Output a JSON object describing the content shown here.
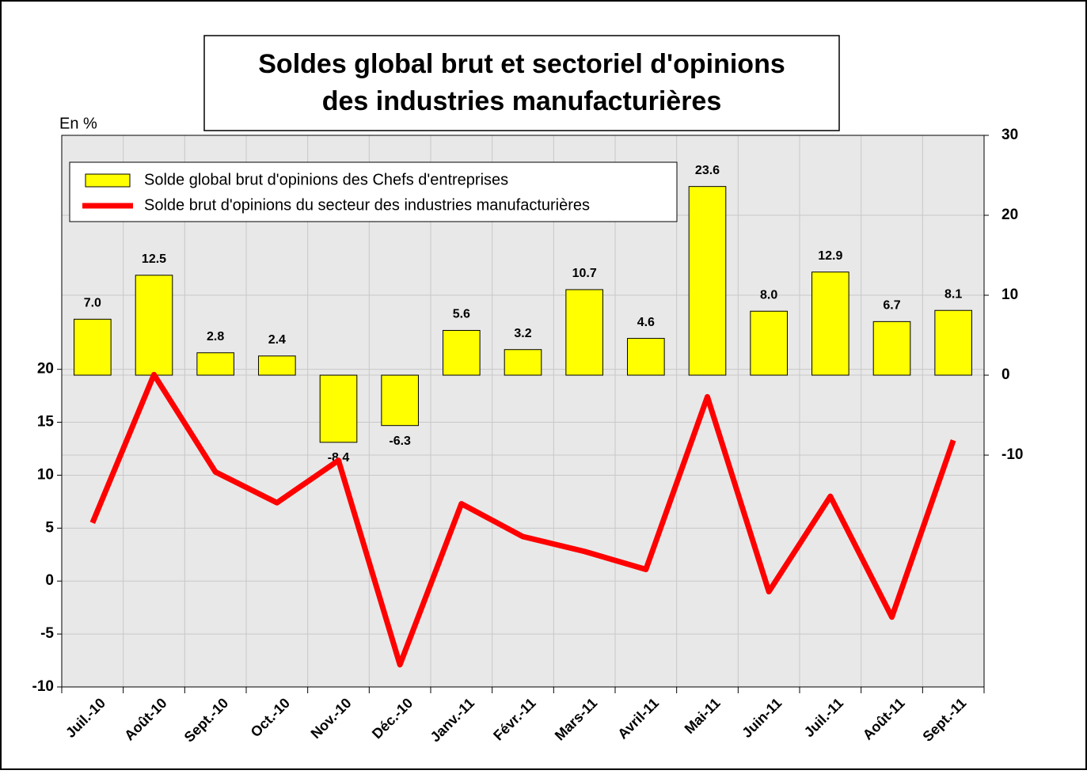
{
  "chart_data": {
    "type": "bar_line",
    "title": [
      "Soldes global brut et sectoriel d'opinions",
      "des industries manufacturières"
    ],
    "y_label": "En %",
    "categories": [
      "Juil.-10",
      "Août-10",
      "Sept.-10",
      "Oct.-10",
      "Nov.-10",
      "Déc.-10",
      "Janv.-11",
      "Févr.-11",
      "Mars-11",
      "Avril-11",
      "Mai-11",
      "Juin-11",
      "Juil.-11",
      "Août-11",
      "Sept.-11"
    ],
    "series": [
      {
        "name": "Solde global brut d'opinions des Chefs d'entreprises",
        "kind": "bar",
        "axis": "y2",
        "color": "#ffff00",
        "values": [
          7.0,
          12.5,
          2.8,
          2.4,
          -8.4,
          -6.3,
          5.6,
          3.2,
          10.7,
          4.6,
          23.6,
          8.0,
          12.9,
          6.7,
          8.1
        ],
        "value_labels": [
          "7.0",
          "12.5",
          "2.8",
          "2.4",
          "-8.4",
          "-6.3",
          "5.6",
          "3.2",
          "10.7",
          "4.6",
          "23.6",
          "8.0",
          "12.9",
          "6.7",
          "8.1"
        ]
      },
      {
        "name": "Solde brut d'opinions du secteur des industries manufacturières",
        "kind": "line",
        "axis": "y",
        "color": "#ff0000",
        "values": [
          5.5,
          19.5,
          10.3,
          7.4,
          11.4,
          -7.9,
          7.3,
          4.2,
          2.8,
          1.1,
          17.4,
          -1.0,
          8.0,
          -3.4,
          13.3
        ]
      }
    ],
    "ylim": [
      -10,
      42.1
    ],
    "yticks": [
      -10,
      -5,
      0,
      5,
      10,
      15,
      20
    ],
    "y2lim": [
      -39,
      30
    ],
    "y2ticks": [
      -10,
      0,
      10,
      20,
      30
    ],
    "grid": true,
    "legend": "upper left"
  }
}
